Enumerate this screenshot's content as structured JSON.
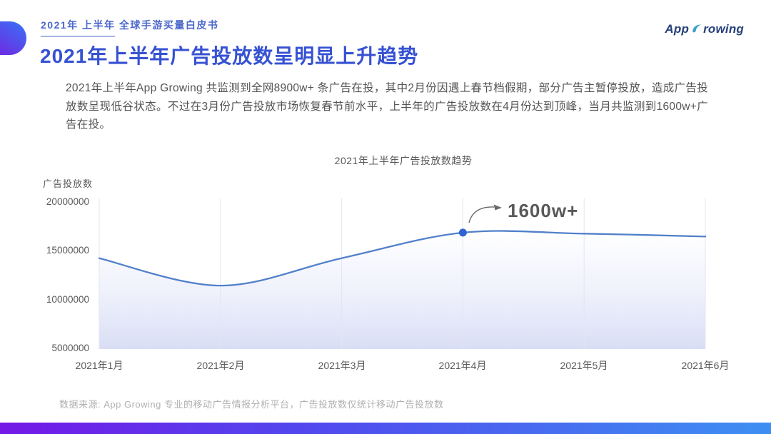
{
  "page": {
    "eyebrow": "2021年 上半年 全球手游买量白皮书",
    "title": "2021年上半年广告投放数呈明显上升趋势",
    "logo": {
      "text": "App Growing",
      "prefix": "App",
      "suffix": "rowing"
    },
    "paragraph": "2021年上半年App Growing 共监测到全网8900w+ 条广告在投，其中2月份因遇上春节档假期，部分广告主暂停投放，造成广告投放数呈现低谷状态。不过在3月份广告投放市场恢复春节前水平，上半年的广告投放数在4月份达到顶峰，当月共监测到1600w+广告在投。",
    "source_note": "数据来源: App Growing 专业的移动广告情报分析平台，广告投放数仅统计移动广告投放数"
  },
  "chart_data": {
    "type": "line",
    "title": "2021年上半年广告投放数趋势",
    "ylabel": "广告投放数",
    "xlabel": "",
    "categories": [
      "2021年1月",
      "2021年2月",
      "2021年3月",
      "2021年4月",
      "2021年5月",
      "2021年6月"
    ],
    "values": [
      14200000,
      11400000,
      14200000,
      16800000,
      16700000,
      16400000
    ],
    "ylim": [
      5000000,
      20000000
    ],
    "y_ticks": [
      "20000000",
      "15000000",
      "10000000",
      "5000000"
    ],
    "grid": "vertical-gridlines-only",
    "legend": "none",
    "smooth": true,
    "area_fill": "vertical gradient, transparent to light periwinkle #d7dcf4",
    "line_color": "#5180CA",
    "marker_color": "#2F62D4",
    "annotation": {
      "label": "1600w+",
      "category": "2021年4月",
      "point_index": 3
    }
  },
  "colors": {
    "title_blue": "#3652D2",
    "eyebrow_blue": "#4C68CC",
    "body_text": "#545454",
    "axis_text": "#595959",
    "source_text": "#B1B1B1",
    "annotation_blue": "#2B50CC",
    "accent_gradient_left": "#7418E6",
    "accent_gradient_right": "#3E8FF2",
    "deco_gradient_top": "#3D6CF5",
    "deco_gradient_bottom": "#6B2FE3",
    "logo_navy": "#26407A",
    "logo_teal": "#3FA6C6"
  }
}
